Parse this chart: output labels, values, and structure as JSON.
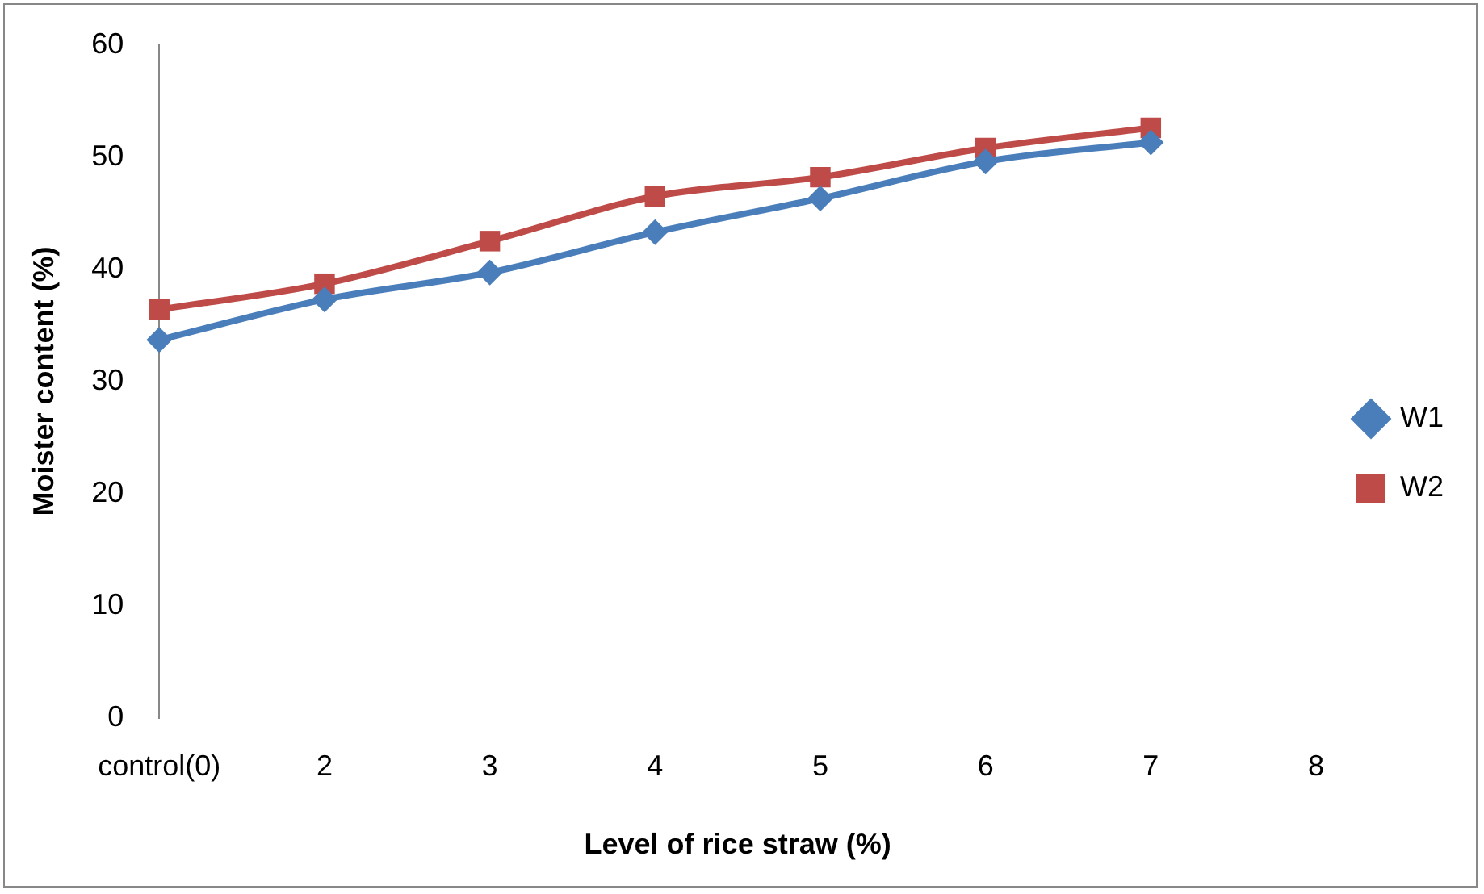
{
  "chart_data": {
    "type": "line",
    "xlabel": "Level of rice straw (%)",
    "ylabel": "Moister content (%)",
    "categories": [
      "control(0)",
      "2",
      "3",
      "4",
      "5",
      "6",
      "7",
      "8"
    ],
    "series": [
      {
        "name": "W1",
        "color": "#4a7ebb",
        "marker": "diamond",
        "values": [
          33.7,
          37.3,
          39.7,
          43.3,
          46.3,
          49.6,
          51.3,
          null
        ]
      },
      {
        "name": "W2",
        "color": "#be4b48",
        "marker": "square",
        "values": [
          36.4,
          38.7,
          42.5,
          46.5,
          48.2,
          50.8,
          52.6,
          null
        ]
      }
    ],
    "ylim": [
      0,
      60
    ],
    "yticks": [
      0,
      10,
      20,
      30,
      40,
      50,
      60
    ],
    "grid": false,
    "legend": "right"
  }
}
